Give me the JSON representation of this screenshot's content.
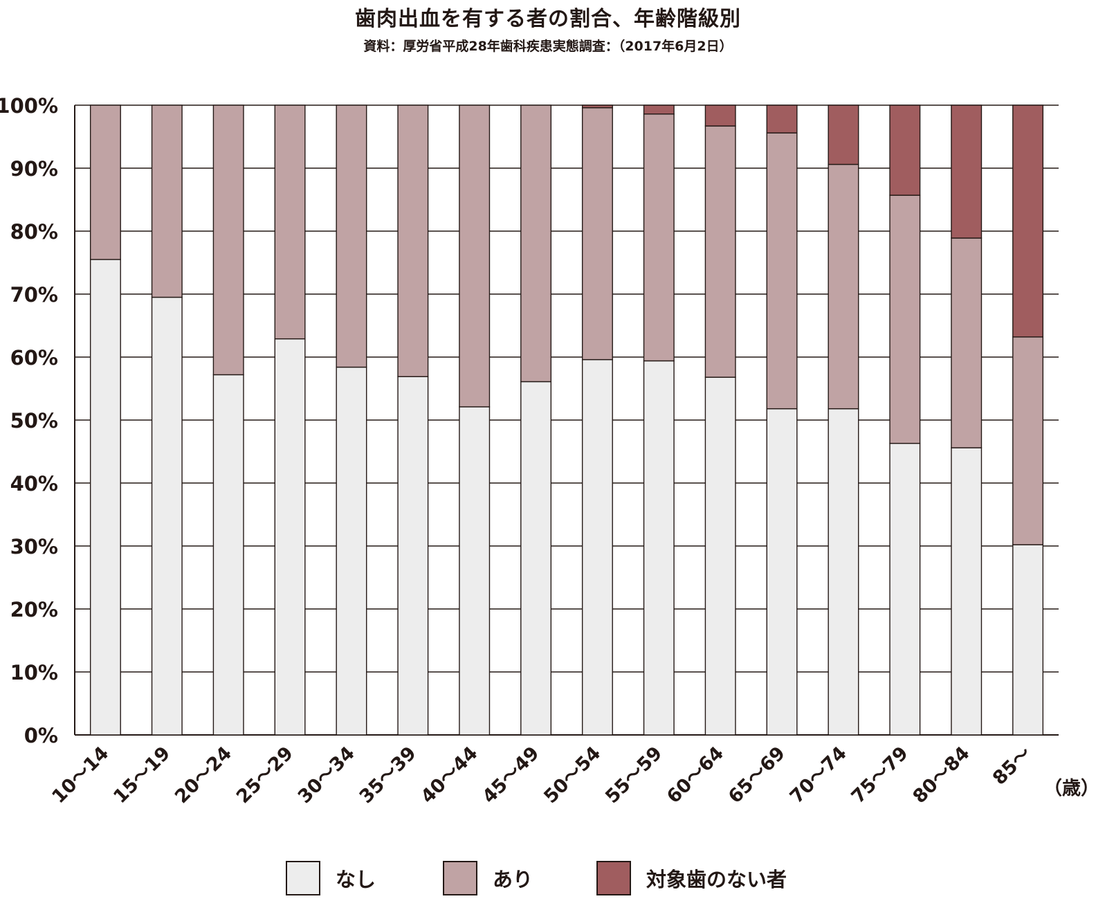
{
  "title": "歯肉出血を有する者の割合、年齢階級別",
  "subtitle": "資料：厚労省平成28年歯科疾患実態調査：（2017年6月2日）",
  "colors": {
    "nashi": "#EDEDED",
    "ari": "#C0A3A4",
    "no_teeth": "#A05D5F",
    "line": "#231815"
  },
  "chart_data": {
    "type": "bar",
    "stacked": true,
    "title": "歯肉出血を有する者の割合、年齢階級別",
    "categories": [
      "10～14",
      "15～19",
      "20～24",
      "25～29",
      "30～34",
      "35～39",
      "40～44",
      "45～49",
      "50～54",
      "55～59",
      "60～64",
      "65～69",
      "70～74",
      "75～79",
      "80～84",
      "85～"
    ],
    "x_unit": "（歳）",
    "series": [
      {
        "name": "なし",
        "color": "#EDEDED",
        "values": [
          75.5,
          69.5,
          57.2,
          62.9,
          58.4,
          56.9,
          52.1,
          56.1,
          59.6,
          59.4,
          56.8,
          51.8,
          51.8,
          46.3,
          45.6,
          30.2
        ]
      },
      {
        "name": "あり",
        "color": "#C0A3A4",
        "values": [
          24.5,
          30.5,
          42.8,
          37.1,
          41.6,
          43.1,
          47.9,
          43.9,
          40.0,
          39.2,
          39.9,
          43.8,
          38.8,
          39.4,
          33.3,
          33.0
        ]
      },
      {
        "name": "対象歯のない者",
        "color": "#A05D5F",
        "values": [
          0,
          0,
          0,
          0,
          0,
          0,
          0,
          0,
          0.4,
          1.4,
          3.3,
          4.4,
          9.4,
          14.3,
          21.1,
          36.8
        ]
      }
    ],
    "ylim": [
      0,
      100
    ],
    "yticks": [
      "0%",
      "10%",
      "20%",
      "30%",
      "40%",
      "50%",
      "60%",
      "70%",
      "80%",
      "90%",
      "100%"
    ],
    "grid": true,
    "legend_position": "bottom"
  }
}
